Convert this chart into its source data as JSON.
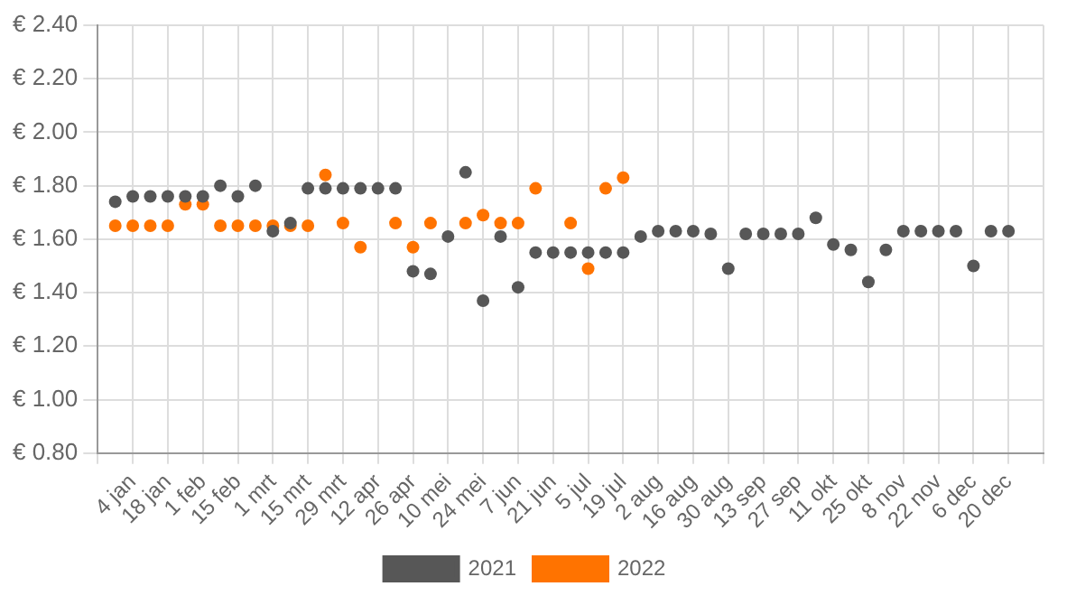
{
  "chart_data": {
    "type": "scatter",
    "marker": "circle",
    "grid": true,
    "legend": "bottom",
    "categories": [
      null,
      null,
      "4 jan",
      null,
      "18 jan",
      null,
      "1 feb",
      null,
      "15 feb",
      null,
      "1 mrt",
      null,
      "15 mrt",
      null,
      "29 mrt",
      null,
      "12 apr",
      null,
      "26 apr",
      null,
      "10 mei",
      null,
      "24 mei",
      null,
      "7 jun",
      null,
      "21 jun",
      null,
      "5 jul",
      null,
      "19 jul",
      null,
      "2 aug",
      null,
      "16 aug",
      null,
      "30 aug",
      null,
      "13 sep",
      null,
      "27 sep",
      null,
      "11 okt",
      null,
      "25 okt",
      null,
      "8 nov",
      null,
      "22 nov",
      null,
      "6 dec",
      null,
      "20 dec",
      null,
      null
    ],
    "ylim": [
      0.8,
      2.4
    ],
    "yticks": [
      {
        "value": 0.8,
        "label": "€ 0.80"
      },
      {
        "value": 1.0,
        "label": "€ 1.00"
      },
      {
        "value": 1.2,
        "label": "€ 1.20"
      },
      {
        "value": 1.4,
        "label": "€ 1.40"
      },
      {
        "value": 1.6,
        "label": "€ 1.60"
      },
      {
        "value": 1.8,
        "label": "€ 1.80"
      },
      {
        "value": 2.0,
        "label": "€ 2.00"
      },
      {
        "value": 2.2,
        "label": "€ 2.20"
      },
      {
        "value": 2.4,
        "label": "€ 2.40"
      }
    ],
    "series": [
      {
        "name": "2021",
        "color": "#575757",
        "values": [
          null,
          1.74,
          1.76,
          1.76,
          1.76,
          1.76,
          1.76,
          1.8,
          1.76,
          1.8,
          1.63,
          1.66,
          1.79,
          1.79,
          1.79,
          1.79,
          1.79,
          1.79,
          1.48,
          1.47,
          1.61,
          1.85,
          1.37,
          1.61,
          1.42,
          1.55,
          1.55,
          1.55,
          1.55,
          1.55,
          1.55,
          1.61,
          1.63,
          1.63,
          1.63,
          1.62,
          1.49,
          1.62,
          1.62,
          1.62,
          1.62,
          1.68,
          1.58,
          1.56,
          1.44,
          1.56,
          1.63,
          1.63,
          1.63,
          1.63,
          1.5,
          1.63,
          1.63,
          null,
          null
        ]
      },
      {
        "name": "2022",
        "color": "#ff7300",
        "values": [
          null,
          1.65,
          1.65,
          1.65,
          1.65,
          1.73,
          1.73,
          1.65,
          1.65,
          1.65,
          1.65,
          1.65,
          1.65,
          1.84,
          1.66,
          1.57,
          null,
          1.66,
          1.57,
          1.66,
          null,
          1.66,
          1.69,
          1.66,
          1.66,
          1.79,
          null,
          1.66,
          1.49,
          1.79,
          1.83,
          null,
          null,
          null,
          null,
          null,
          null,
          null,
          null,
          null,
          null,
          null,
          null,
          null,
          null,
          null,
          null,
          null,
          null,
          null,
          null,
          null,
          null,
          null,
          null
        ]
      }
    ]
  }
}
